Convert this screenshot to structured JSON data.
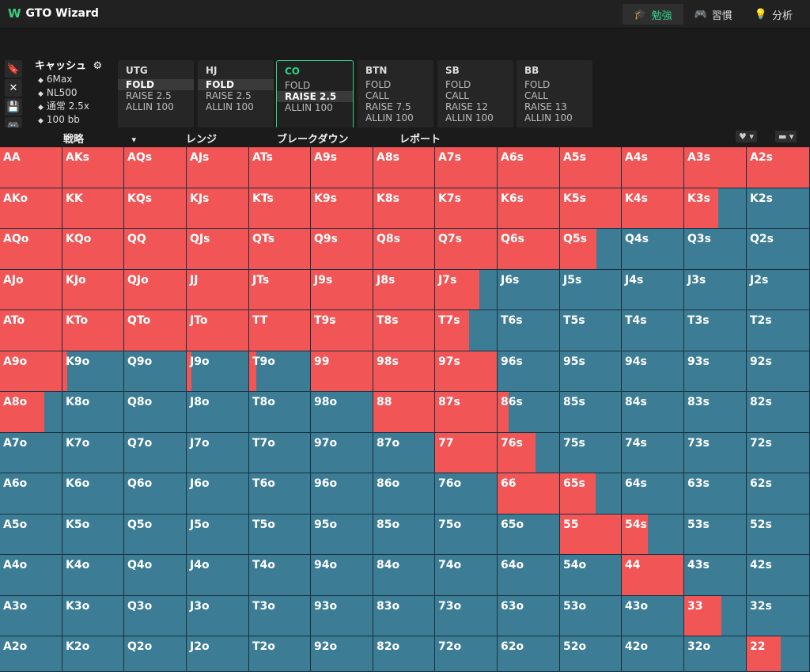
{
  "app": {
    "title": "GTO Wizard",
    "logo": "W"
  },
  "nav": [
    {
      "label": "勉強",
      "icon": "graduation-cap-icon",
      "glyph": "🎓",
      "active": true
    },
    {
      "label": "習慣",
      "icon": "gamepad-icon",
      "glyph": "🎮",
      "active": false
    },
    {
      "label": "分析",
      "icon": "lightbulb-icon",
      "glyph": "💡",
      "active": false
    }
  ],
  "sidetools": [
    {
      "icon": "bookmark-icon",
      "glyph": "🔖"
    },
    {
      "icon": "close-icon",
      "glyph": "✕"
    },
    {
      "icon": "save-icon",
      "glyph": "💾"
    },
    {
      "icon": "gamepad-icon",
      "glyph": "🎮"
    },
    {
      "icon": "split-icon",
      "glyph": "÷"
    }
  ],
  "info": {
    "title": "キャッシュ",
    "settings_icon": "gear-icon",
    "rows": [
      "6Max",
      "NL500",
      "通常 2.5x",
      "100 bb"
    ]
  },
  "positions": [
    {
      "name": "UTG",
      "options": [
        "FOLD",
        "RAISE 2.5",
        "ALLIN 100"
      ],
      "selected": 0,
      "active": false
    },
    {
      "name": "HJ",
      "options": [
        "FOLD",
        "RAISE 2.5",
        "ALLIN 100"
      ],
      "selected": 0,
      "active": false
    },
    {
      "name": "CO",
      "options": [
        "FOLD",
        "RAISE 2.5",
        "ALLIN 100"
      ],
      "selected": 1,
      "active": true
    },
    {
      "name": "BTN",
      "options": [
        "FOLD",
        "CALL",
        "RAISE 7.5",
        "ALLIN 100"
      ],
      "selected": -1,
      "active": false
    },
    {
      "name": "SB",
      "options": [
        "FOLD",
        "CALL",
        "RAISE 12",
        "ALLIN 100"
      ],
      "selected": -1,
      "active": false
    },
    {
      "name": "BB",
      "options": [
        "FOLD",
        "CALL",
        "RAISE 13",
        "ALLIN 100"
      ],
      "selected": -1,
      "active": false
    }
  ],
  "tabs": [
    "戦略",
    "レンジ",
    "ブレークダウン",
    "レポート"
  ],
  "tab_dropdown": "▾",
  "right_controls": [
    "♥ ▾",
    "▬ ▾"
  ],
  "colors": {
    "raise": "#f25555",
    "fold": "#3c7d95"
  },
  "grid": [
    [
      "AA",
      "AKs",
      "AQs",
      "AJs",
      "ATs",
      "A9s",
      "A8s",
      "A7s",
      "A6s",
      "A5s",
      "A4s",
      "A3s",
      "A2s"
    ],
    [
      "AKo",
      "KK",
      "KQs",
      "KJs",
      "KTs",
      "K9s",
      "K8s",
      "K7s",
      "K6s",
      "K5s",
      "K4s",
      "K3s",
      "K2s"
    ],
    [
      "AQo",
      "KQo",
      "QQ",
      "QJs",
      "QTs",
      "Q9s",
      "Q8s",
      "Q7s",
      "Q6s",
      "Q5s",
      "Q4s",
      "Q3s",
      "Q2s"
    ],
    [
      "AJo",
      "KJo",
      "QJo",
      "JJ",
      "JTs",
      "J9s",
      "J8s",
      "J7s",
      "J6s",
      "J5s",
      "J4s",
      "J3s",
      "J2s"
    ],
    [
      "ATo",
      "KTo",
      "QTo",
      "JTo",
      "TT",
      "T9s",
      "T8s",
      "T7s",
      "T6s",
      "T5s",
      "T4s",
      "T3s",
      "T2s"
    ],
    [
      "A9o",
      "K9o",
      "Q9o",
      "J9o",
      "T9o",
      "99",
      "98s",
      "97s",
      "96s",
      "95s",
      "94s",
      "93s",
      "92s"
    ],
    [
      "A8o",
      "K8o",
      "Q8o",
      "J8o",
      "T8o",
      "98o",
      "88",
      "87s",
      "86s",
      "85s",
      "84s",
      "83s",
      "82s"
    ],
    [
      "A7o",
      "K7o",
      "Q7o",
      "J7o",
      "T7o",
      "97o",
      "87o",
      "77",
      "76s",
      "75s",
      "74s",
      "73s",
      "72s"
    ],
    [
      "A6o",
      "K6o",
      "Q6o",
      "J6o",
      "T6o",
      "96o",
      "86o",
      "76o",
      "66",
      "65s",
      "64s",
      "63s",
      "62s"
    ],
    [
      "A5o",
      "K5o",
      "Q5o",
      "J5o",
      "T5o",
      "95o",
      "85o",
      "75o",
      "65o",
      "55",
      "54s",
      "53s",
      "52s"
    ],
    [
      "A4o",
      "K4o",
      "Q4o",
      "J4o",
      "T4o",
      "94o",
      "84o",
      "74o",
      "64o",
      "54o",
      "44",
      "43s",
      "42s"
    ],
    [
      "A3o",
      "K3o",
      "Q3o",
      "J3o",
      "T3o",
      "93o",
      "83o",
      "73o",
      "63o",
      "53o",
      "43o",
      "33",
      "32s"
    ],
    [
      "A2o",
      "K2o",
      "Q2o",
      "J2o",
      "T2o",
      "92o",
      "82o",
      "72o",
      "62o",
      "52o",
      "42o",
      "32o",
      "22"
    ]
  ],
  "raise_freq": [
    [
      1,
      1,
      1,
      1,
      1,
      1,
      1,
      1,
      1,
      1,
      1,
      1,
      1
    ],
    [
      1,
      1,
      1,
      1,
      1,
      1,
      1,
      1,
      1,
      1,
      1,
      0.55,
      0
    ],
    [
      1,
      1,
      1,
      1,
      1,
      1,
      1,
      1,
      1,
      0.6,
      0,
      0,
      0
    ],
    [
      1,
      1,
      1,
      1,
      1,
      1,
      1,
      0.72,
      0,
      0,
      0,
      0,
      0
    ],
    [
      1,
      1,
      1,
      1,
      1,
      1,
      1,
      0.55,
      0,
      0,
      0,
      0,
      0
    ],
    [
      1,
      0.08,
      0,
      0.08,
      0.12,
      1,
      1,
      1,
      0,
      0,
      0,
      0,
      0
    ],
    [
      0.72,
      0,
      0,
      0,
      0,
      0,
      1,
      1,
      0.18,
      0,
      0,
      0,
      0
    ],
    [
      0,
      0,
      0,
      0,
      0,
      0,
      0,
      1,
      0.62,
      0,
      0,
      0,
      0
    ],
    [
      0,
      0,
      0,
      0,
      0,
      0,
      0,
      0,
      1,
      0.58,
      0,
      0,
      0
    ],
    [
      0,
      0,
      0,
      0,
      0,
      0,
      0,
      0,
      0,
      1,
      0.42,
      0,
      0
    ],
    [
      0,
      0,
      0,
      0,
      0,
      0,
      0,
      0,
      0,
      0,
      1,
      0,
      0
    ],
    [
      0,
      0,
      0,
      0,
      0,
      0,
      0,
      0,
      0,
      0,
      0,
      0.6,
      0
    ],
    [
      0,
      0,
      0,
      0,
      0,
      0,
      0,
      0,
      0,
      0,
      0,
      0,
      0.55
    ]
  ]
}
